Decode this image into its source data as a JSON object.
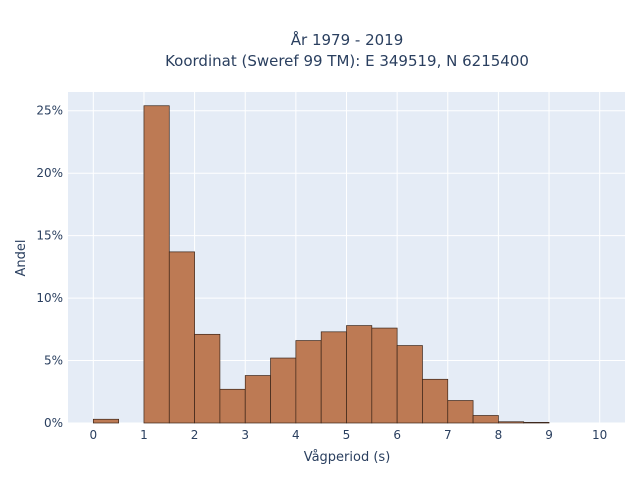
{
  "chart_data": {
    "type": "bar",
    "title": "År 1979 - 2019",
    "subtitle": "Koordinat (Sweref 99 TM): E 349519, N 6215400",
    "xlabel": "Vågperiod (s)",
    "ylabel": "Andel",
    "bin_width": 0.5,
    "bins": [
      {
        "x0": 0.0,
        "value": 0.3
      },
      {
        "x0": 0.5,
        "value": 0.0
      },
      {
        "x0": 1.0,
        "value": 25.4
      },
      {
        "x0": 1.5,
        "value": 13.7
      },
      {
        "x0": 2.0,
        "value": 7.1
      },
      {
        "x0": 2.5,
        "value": 2.7
      },
      {
        "x0": 3.0,
        "value": 3.8
      },
      {
        "x0": 3.5,
        "value": 5.2
      },
      {
        "x0": 4.0,
        "value": 6.6
      },
      {
        "x0": 4.5,
        "value": 7.3
      },
      {
        "x0": 5.0,
        "value": 7.8
      },
      {
        "x0": 5.5,
        "value": 7.6
      },
      {
        "x0": 6.0,
        "value": 6.2
      },
      {
        "x0": 6.5,
        "value": 3.5
      },
      {
        "x0": 7.0,
        "value": 1.8
      },
      {
        "x0": 7.5,
        "value": 0.6
      },
      {
        "x0": 8.0,
        "value": 0.1
      },
      {
        "x0": 8.5,
        "value": 0.05
      }
    ],
    "xlim": [
      -0.5,
      10.5
    ],
    "ylim": [
      0,
      26.5
    ],
    "xticks": [
      0,
      1,
      2,
      3,
      4,
      5,
      6,
      7,
      8,
      9,
      10
    ],
    "xtick_labels": [
      "0",
      "1",
      "2",
      "3",
      "4",
      "5",
      "6",
      "7",
      "8",
      "9",
      "10"
    ],
    "yticks": [
      0,
      5,
      10,
      15,
      20,
      25
    ],
    "ytick_labels": [
      "0%",
      "5%",
      "10%",
      "15%",
      "20%",
      "25%"
    ],
    "grid": true,
    "legend": "none",
    "colors": {
      "bar_fill": "#bd7a54",
      "bar_stroke": "#3a2418",
      "plot_bg": "#e5ecf6",
      "grid": "#ffffff",
      "text": "#2a3f5f"
    }
  }
}
